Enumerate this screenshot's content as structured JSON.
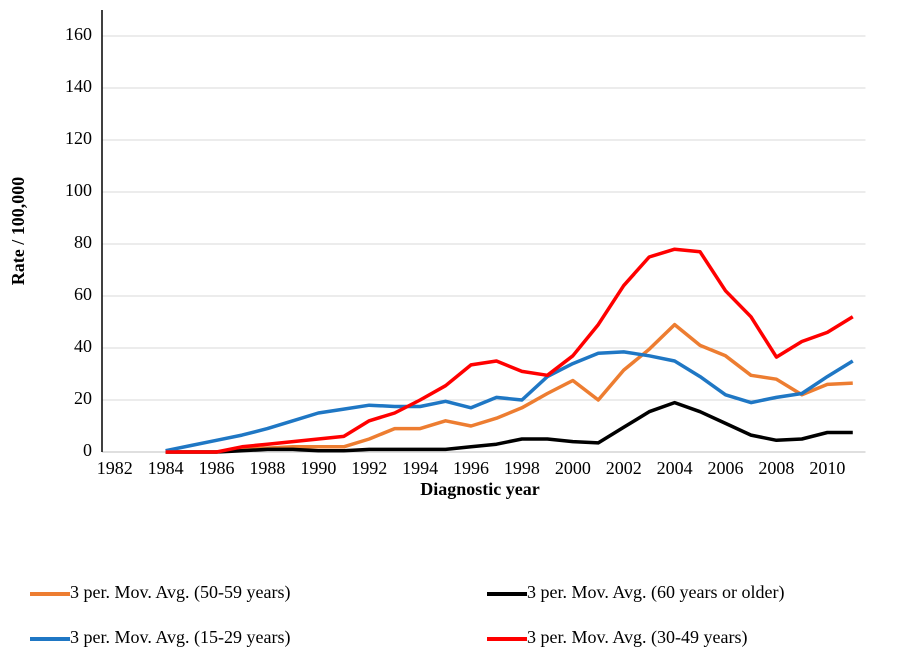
{
  "chart_data": {
    "type": "line",
    "xlabel": "Diagnostic year",
    "ylabel": "Rate / 100,000",
    "categories": [
      "1982",
      null,
      "1984",
      null,
      "1986",
      null,
      "1988",
      null,
      "1990",
      null,
      "1992",
      null,
      "1994",
      null,
      "1996",
      null,
      "1998",
      null,
      "2000",
      null,
      "2002",
      null,
      "2004",
      null,
      "2006",
      null,
      "2008",
      null,
      "2010",
      null
    ],
    "series": [
      {
        "name": "3 per. Mov. Avg. (50-59 years)",
        "color": "#ed7d31",
        "values": [
          null,
          null,
          0,
          0,
          0,
          1,
          1.5,
          2,
          2,
          2,
          5,
          9,
          9,
          12,
          10,
          13,
          17,
          22.5,
          27.5,
          20,
          31.5,
          39.5,
          49,
          41,
          37,
          29.5,
          28,
          22,
          26,
          26.5
        ]
      },
      {
        "name": "3 per. Mov. Avg. (60 years or older)",
        "color": "#000000",
        "values": [
          null,
          null,
          0,
          0,
          0,
          0.5,
          1,
          1,
          0.5,
          0.5,
          1,
          1,
          1,
          1,
          2,
          3,
          5,
          5,
          4,
          3.5,
          9.5,
          15.5,
          19,
          15.5,
          11,
          6.5,
          4.5,
          5,
          7.5,
          7.5
        ]
      },
      {
        "name": "3 per. Mov. Avg. (15-29 years)",
        "color": "#1f77c4",
        "values": [
          null,
          null,
          0.5,
          2.5,
          4.5,
          6.5,
          9,
          12,
          15,
          16.5,
          18,
          17.5,
          17.5,
          19.5,
          17,
          21,
          20,
          29,
          34,
          38,
          38.5,
          37,
          35,
          29,
          22,
          19,
          21,
          22.5,
          29,
          35
        ]
      },
      {
        "name": "3 per. Mov. Avg. (30-49 years)",
        "color": "#ff0000",
        "values": [
          null,
          null,
          0,
          0,
          0,
          2,
          3,
          4,
          5,
          6,
          12,
          15,
          20,
          25.5,
          33.5,
          35,
          31,
          29.5,
          37,
          49,
          64,
          75,
          78,
          77,
          62,
          52,
          36.5,
          42.5,
          46,
          52
        ]
      }
    ],
    "ylim": [
      0,
      170
    ],
    "yticks": [
      0,
      20,
      40,
      60,
      80,
      100,
      120,
      140,
      160
    ],
    "grid": true
  }
}
